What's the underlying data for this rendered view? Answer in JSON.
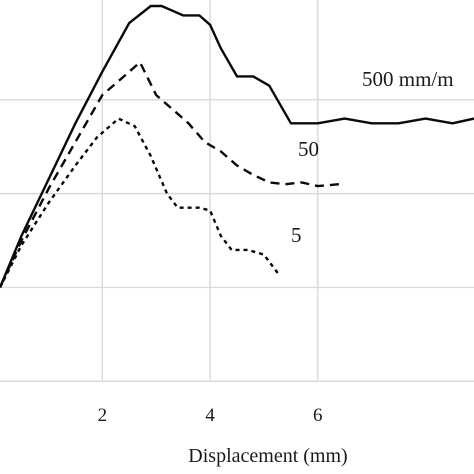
{
  "chart_data": {
    "type": "line",
    "title": "",
    "xlabel": "Displacement (mm)",
    "ylabel": "",
    "xlim": [
      0.1,
      8.9
    ],
    "ylim": [
      -0.2,
      4.0
    ],
    "grid": true,
    "x_ticks": [
      2,
      4,
      6
    ],
    "x_tick_labels": [
      "2",
      "4",
      "6"
    ],
    "y_gridlines": [
      0,
      1,
      2,
      3
    ],
    "series": [
      {
        "name": "500 mm/m",
        "style": "solid",
        "x": [
          0.1,
          0.5,
          1.0,
          1.5,
          2.0,
          2.5,
          2.9,
          3.1,
          3.3,
          3.5,
          3.8,
          4.0,
          4.2,
          4.5,
          4.8,
          5.1,
          5.5,
          6.0,
          6.5,
          7.0,
          7.5,
          8.0,
          8.5,
          8.9
        ],
        "y": [
          1.0,
          1.55,
          2.15,
          2.75,
          3.3,
          3.82,
          4.0,
          4.0,
          3.95,
          3.9,
          3.9,
          3.8,
          3.55,
          3.25,
          3.25,
          3.15,
          2.75,
          2.75,
          2.8,
          2.75,
          2.75,
          2.8,
          2.75,
          2.8
        ]
      },
      {
        "name": "50",
        "style": "dashed",
        "x": [
          0.1,
          0.5,
          1.0,
          1.5,
          2.0,
          2.4,
          2.7,
          3.0,
          3.3,
          3.6,
          3.9,
          4.2,
          4.5,
          4.8,
          5.1,
          5.4,
          5.7,
          6.0,
          6.4
        ],
        "y": [
          1.0,
          1.5,
          2.05,
          2.55,
          3.05,
          3.25,
          3.4,
          3.05,
          2.9,
          2.75,
          2.55,
          2.45,
          2.3,
          2.2,
          2.12,
          2.1,
          2.12,
          2.08,
          2.1
        ]
      },
      {
        "name": "5",
        "style": "dotted",
        "x": [
          0.1,
          0.5,
          1.0,
          1.5,
          1.9,
          2.3,
          2.6,
          2.9,
          3.2,
          3.4,
          3.6,
          3.8,
          4.0,
          4.2,
          4.4,
          4.7,
          5.0,
          5.3
        ],
        "y": [
          1.0,
          1.45,
          1.9,
          2.3,
          2.6,
          2.8,
          2.72,
          2.4,
          2.0,
          1.85,
          1.85,
          1.85,
          1.82,
          1.55,
          1.4,
          1.4,
          1.35,
          1.12
        ]
      }
    ],
    "annotations": [
      {
        "text": "500 mm/m",
        "series": 0
      },
      {
        "text": "50",
        "series": 1
      },
      {
        "text": "5",
        "series": 2
      }
    ]
  },
  "colors": {
    "line": "#0a0a0a",
    "grid": "#d9d9d9",
    "text": "#1a1a1a"
  }
}
